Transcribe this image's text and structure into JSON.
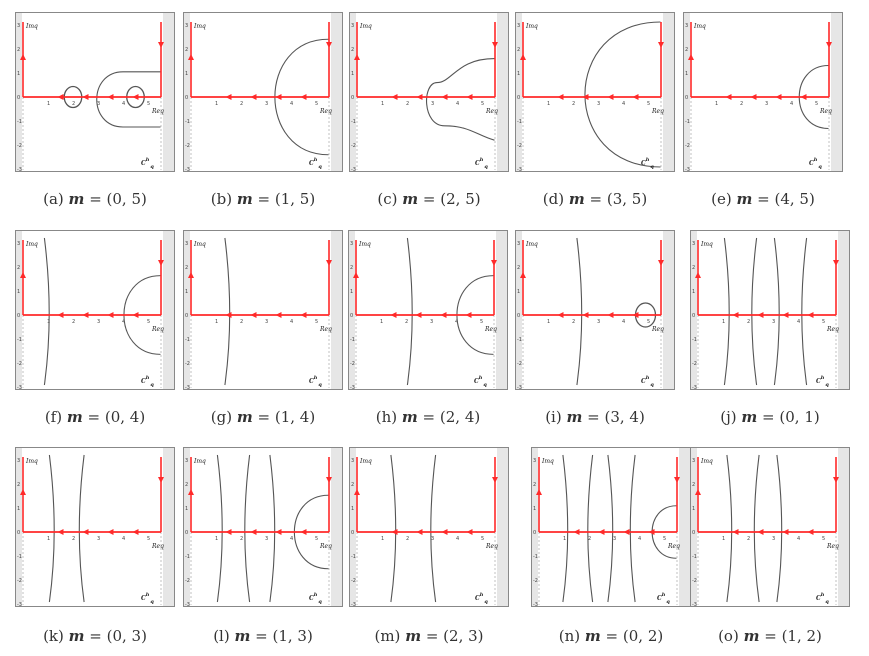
{
  "figure": {
    "axis_labels": {
      "imag": "Imq",
      "real": "Req",
      "contour": "C",
      "contour_sup": "h",
      "contour_sub": "q"
    },
    "x_ticks": [
      "1",
      "2",
      "3",
      "4",
      "5"
    ],
    "y_ticks": [
      "3",
      "2",
      "1",
      "0",
      "-1",
      "-2",
      "-3"
    ],
    "colors": {
      "axis": "#ff2a2a",
      "curve": "#555555",
      "strip": "#e6e6e6",
      "border": "#888888"
    },
    "panels": [
      {
        "id": "a",
        "letter": "(a)",
        "var": "m",
        "value": " = (0, 5)"
      },
      {
        "id": "b",
        "letter": "(b)",
        "var": "m",
        "value": " = (1, 5)"
      },
      {
        "id": "c",
        "letter": "(c)",
        "var": "m",
        "value": " = (2, 5)"
      },
      {
        "id": "d",
        "letter": "(d)",
        "var": "m",
        "value": " = (3, 5)"
      },
      {
        "id": "e",
        "letter": "(e)",
        "var": "m",
        "value": " = (4, 5)"
      },
      {
        "id": "f",
        "letter": "(f)",
        "var": "m",
        "value": " = (0, 4)"
      },
      {
        "id": "g",
        "letter": "(g)",
        "var": "m",
        "value": " = (1, 4)"
      },
      {
        "id": "h",
        "letter": "(h)",
        "var": "m",
        "value": " = (2, 4)"
      },
      {
        "id": "i",
        "letter": "(i)",
        "var": "m",
        "value": " = (3, 4)"
      },
      {
        "id": "j",
        "letter": "(j)",
        "var": "m",
        "value": " = (0, 1)"
      },
      {
        "id": "k",
        "letter": "(k)",
        "var": "m",
        "value": " = (0, 3)"
      },
      {
        "id": "l",
        "letter": "(l)",
        "var": "m",
        "value": " = (1, 3)"
      },
      {
        "id": "m",
        "letter": "(m)",
        "var": "m",
        "value": " = (2, 3)"
      },
      {
        "id": "n",
        "letter": "(n)",
        "var": "m",
        "value": " = (0, 2)"
      },
      {
        "id": "o",
        "letter": "(o)",
        "var": "m",
        "value": " = (1, 2)"
      }
    ]
  }
}
